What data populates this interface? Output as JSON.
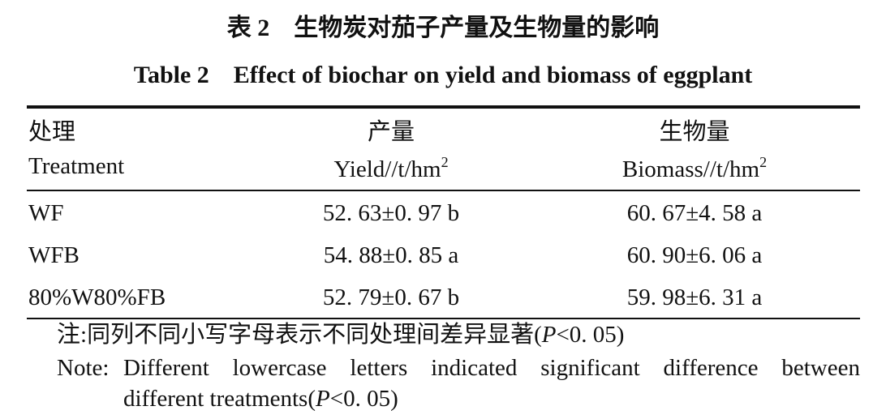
{
  "title_cn": "表 2　生物炭对茄子产量及生物量的影响",
  "title_en": "Table 2　Effect of biochar on yield and biomass of eggplant",
  "table": {
    "header": [
      {
        "cn": "处理",
        "en": "Treatment"
      },
      {
        "cn": "产量",
        "en": "Yield//t/hm",
        "sup": "2"
      },
      {
        "cn": "生物量",
        "en": "Biomass//t/hm",
        "sup": "2"
      }
    ],
    "rows": [
      [
        "WF",
        "52. 63±0. 97 b",
        "60. 67±4. 58 a"
      ],
      [
        "WFB",
        "54. 88±0. 85 a",
        "60. 90±6. 06 a"
      ],
      [
        "80%W80%FB",
        "52. 79±0. 67 b",
        "59. 98±6. 31 a"
      ]
    ]
  },
  "notes": {
    "cn": {
      "label": "注:",
      "text": "同列不同小写字母表示不同处理间差异显著(",
      "p": "P",
      "tail": "<0. 05)"
    },
    "en": {
      "label": "Note:",
      "text": "Different lowercase letters indicated significant difference between",
      "text2": "different treatments(",
      "p": "P",
      "tail": "<0. 05)"
    }
  }
}
